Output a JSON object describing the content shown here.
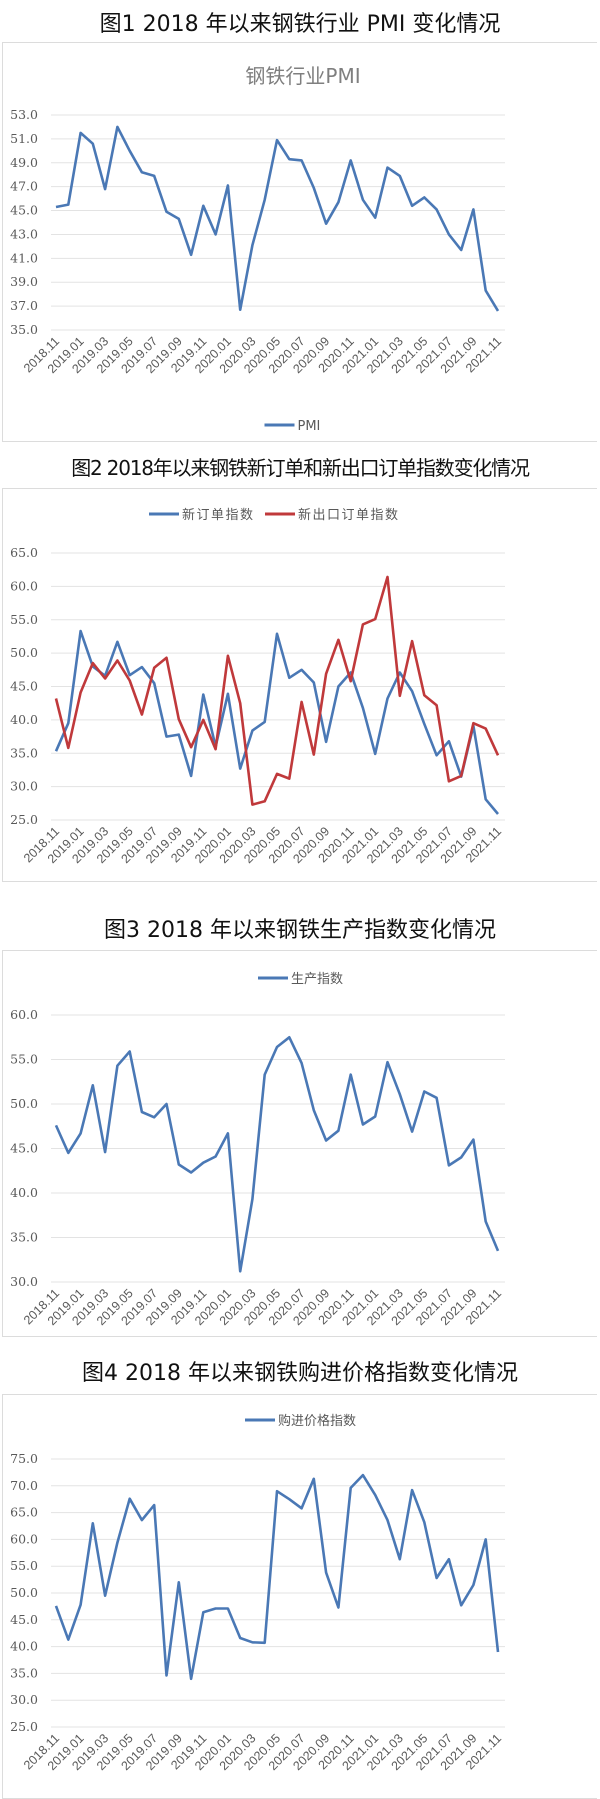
{
  "captions": [
    "图1  2018 年以来钢铁行业 PMI 变化情况",
    "图2  2018年以来钢铁新订单和新出口订单指数变化情况",
    "图3  2018 年以来钢铁生产指数变化情况",
    "图4  2018 年以来钢铁购进价格指数变化情况"
  ],
  "colors": {
    "blue": "#4a78b5",
    "red": "#c0393b",
    "grid": "#e3e3e3"
  },
  "chart_data": [
    {
      "type": "line",
      "title": "钢铁行业PMI",
      "categories": [
        "2018.11",
        "2018.12",
        "2019.01",
        "2019.02",
        "2019.03",
        "2019.04",
        "2019.05",
        "2019.06",
        "2019.07",
        "2019.08",
        "2019.09",
        "2019.10",
        "2019.11",
        "2019.12",
        "2020.01",
        "2020.02",
        "2020.03",
        "2020.04",
        "2020.05",
        "2020.06",
        "2020.07",
        "2020.08",
        "2020.09",
        "2020.10",
        "2020.11",
        "2020.12",
        "2021.01",
        "2021.02",
        "2021.03",
        "2021.04",
        "2021.05",
        "2021.06",
        "2021.07",
        "2021.08",
        "2021.09",
        "2021.10",
        "2021.11"
      ],
      "xtick_labels": [
        "2018.11",
        "2019.01",
        "2019.03",
        "2019.05",
        "2019.07",
        "2019.09",
        "2019.11",
        "2020.01",
        "2020.03",
        "2020.05",
        "2020.07",
        "2020.09",
        "2020.11",
        "2021.01",
        "2021.03",
        "2021.05",
        "2021.07",
        "2021.09",
        "2021.11"
      ],
      "ylim": [
        35,
        53
      ],
      "yticks": [
        "35.0",
        "37.0",
        "39.0",
        "41.0",
        "43.0",
        "45.0",
        "47.0",
        "49.0",
        "51.0",
        "53.0"
      ],
      "legend_position": "bottom",
      "series": [
        {
          "name": "PMI",
          "color": "#4a78b5",
          "values": [
            45.3,
            45.5,
            51.5,
            50.6,
            46.8,
            52.0,
            50.0,
            48.2,
            47.9,
            44.9,
            44.3,
            41.3,
            45.4,
            43.0,
            47.1,
            36.7,
            42.1,
            45.9,
            50.9,
            49.3,
            49.2,
            46.9,
            43.9,
            45.7,
            49.2,
            45.9,
            44.4,
            48.6,
            47.9,
            45.4,
            46.1,
            45.1,
            43.0,
            41.7,
            45.1,
            38.3,
            36.6
          ]
        }
      ]
    },
    {
      "type": "line",
      "title": "",
      "categories": [
        "2018.11",
        "2018.12",
        "2019.01",
        "2019.02",
        "2019.03",
        "2019.04",
        "2019.05",
        "2019.06",
        "2019.07",
        "2019.08",
        "2019.09",
        "2019.10",
        "2019.11",
        "2019.12",
        "2020.01",
        "2020.02",
        "2020.03",
        "2020.04",
        "2020.05",
        "2020.06",
        "2020.07",
        "2020.08",
        "2020.09",
        "2020.10",
        "2020.11",
        "2020.12",
        "2021.01",
        "2021.02",
        "2021.03",
        "2021.04",
        "2021.05",
        "2021.06",
        "2021.07",
        "2021.08",
        "2021.09",
        "2021.10",
        "2021.11"
      ],
      "xtick_labels": [
        "2018.11",
        "2019.01",
        "2019.03",
        "2019.05",
        "2019.07",
        "2019.09",
        "2019.11",
        "2020.01",
        "2020.03",
        "2020.05",
        "2020.07",
        "2020.09",
        "2020.11",
        "2021.01",
        "2021.03",
        "2021.05",
        "2021.07",
        "2021.09",
        "2021.11"
      ],
      "ylim": [
        25,
        65
      ],
      "yticks": [
        "25.0",
        "30.0",
        "35.0",
        "40.0",
        "45.0",
        "50.0",
        "55.0",
        "60.0",
        "65.0"
      ],
      "legend_position": "top",
      "series": [
        {
          "name": "新订单指数",
          "color": "#4a78b5",
          "values": [
            35.3,
            39.5,
            53.3,
            48.0,
            46.6,
            51.7,
            46.7,
            47.9,
            45.5,
            37.5,
            37.8,
            31.6,
            43.8,
            36.0,
            43.9,
            32.7,
            38.4,
            39.7,
            52.9,
            46.3,
            47.5,
            45.6,
            36.7,
            45.0,
            47.1,
            41.8,
            34.9,
            43.2,
            47.1,
            44.3,
            39.4,
            34.7,
            36.8,
            31.5,
            39.1,
            28.1,
            25.9
          ]
        },
        {
          "name": "新出口订单指数",
          "color": "#c0393b",
          "values": [
            43.2,
            35.8,
            44.1,
            48.5,
            46.2,
            48.9,
            45.9,
            40.8,
            47.8,
            49.3,
            40.1,
            35.9,
            40.0,
            35.6,
            49.6,
            42.5,
            27.3,
            27.8,
            31.9,
            31.2,
            42.7,
            34.8,
            46.9,
            52.0,
            45.8,
            54.3,
            55.1,
            61.4,
            43.6,
            51.8,
            43.7,
            42.2,
            30.8,
            31.6,
            39.5,
            38.7,
            34.7
          ]
        }
      ]
    },
    {
      "type": "line",
      "title": "",
      "categories": [
        "2018.11",
        "2018.12",
        "2019.01",
        "2019.02",
        "2019.03",
        "2019.04",
        "2019.05",
        "2019.06",
        "2019.07",
        "2019.08",
        "2019.09",
        "2019.10",
        "2019.11",
        "2019.12",
        "2020.01",
        "2020.02",
        "2020.03",
        "2020.04",
        "2020.05",
        "2020.06",
        "2020.07",
        "2020.08",
        "2020.09",
        "2020.10",
        "2020.11",
        "2020.12",
        "2021.01",
        "2021.02",
        "2021.03",
        "2021.04",
        "2021.05",
        "2021.06",
        "2021.07",
        "2021.08",
        "2021.09",
        "2021.10",
        "2021.11"
      ],
      "xtick_labels": [
        "2018.11",
        "2019.01",
        "2019.03",
        "2019.05",
        "2019.07",
        "2019.09",
        "2019.11",
        "2020.01",
        "2020.03",
        "2020.05",
        "2020.07",
        "2020.09",
        "2020.11",
        "2021.01",
        "2021.03",
        "2021.05",
        "2021.07",
        "2021.09",
        "2021.11"
      ],
      "ylim": [
        30,
        60
      ],
      "yticks": [
        "30.0",
        "35.0",
        "40.0",
        "45.0",
        "50.0",
        "55.0",
        "60.0"
      ],
      "legend_position": "top",
      "series": [
        {
          "name": "生产指数",
          "color": "#4a78b5",
          "values": [
            47.6,
            44.5,
            46.7,
            52.1,
            44.6,
            54.3,
            55.9,
            49.1,
            48.5,
            50.0,
            43.2,
            42.3,
            43.4,
            44.1,
            46.7,
            31.2,
            39.3,
            53.3,
            56.4,
            57.5,
            54.6,
            49.3,
            45.9,
            47.0,
            53.3,
            47.7,
            48.6,
            54.7,
            51.1,
            46.9,
            51.4,
            50.7,
            43.1,
            44.0,
            46.0,
            36.8,
            33.5
          ]
        }
      ]
    },
    {
      "type": "line",
      "title": "",
      "categories": [
        "2018.11",
        "2018.12",
        "2019.01",
        "2019.02",
        "2019.03",
        "2019.04",
        "2019.05",
        "2019.06",
        "2019.07",
        "2019.08",
        "2019.09",
        "2019.10",
        "2019.11",
        "2019.12",
        "2020.01",
        "2020.02",
        "2020.03",
        "2020.04",
        "2020.05",
        "2020.06",
        "2020.07",
        "2020.08",
        "2020.09",
        "2020.10",
        "2020.11",
        "2020.12",
        "2021.01",
        "2021.02",
        "2021.03",
        "2021.04",
        "2021.05",
        "2021.06",
        "2021.07",
        "2021.08",
        "2021.09",
        "2021.10",
        "2021.11"
      ],
      "xtick_labels": [
        "2018.11",
        "2019.01",
        "2019.03",
        "2019.05",
        "2019.07",
        "2019.09",
        "2019.11",
        "2020.01",
        "2020.03",
        "2020.05",
        "2020.07",
        "2020.09",
        "2020.11",
        "2021.01",
        "2021.03",
        "2021.05",
        "2021.07",
        "2021.09",
        "2021.11"
      ],
      "ylim": [
        25,
        75
      ],
      "yticks": [
        "25.0",
        "30.0",
        "35.0",
        "40.0",
        "45.0",
        "50.0",
        "55.0",
        "60.0",
        "65.0",
        "70.0",
        "75.0"
      ],
      "legend_position": "top",
      "series": [
        {
          "name": "购进价格指数",
          "color": "#4a78b5",
          "values": [
            47.6,
            41.3,
            47.8,
            63.0,
            49.5,
            59.4,
            67.6,
            63.6,
            66.4,
            34.6,
            52.0,
            34.0,
            46.4,
            47.1,
            47.1,
            41.6,
            40.8,
            40.7,
            69.0,
            67.5,
            65.8,
            71.3,
            53.8,
            47.3,
            69.6,
            72.0,
            68.3,
            63.6,
            56.3,
            69.2,
            63.2,
            52.8,
            56.3,
            47.7,
            51.5,
            60.0,
            39.0
          ]
        }
      ]
    }
  ]
}
